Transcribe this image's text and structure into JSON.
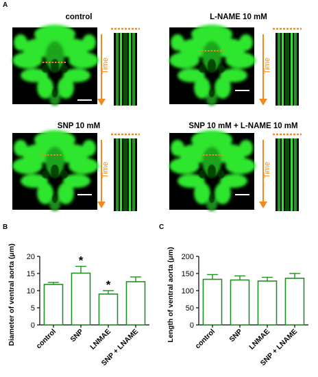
{
  "panel_a": {
    "letter": "A",
    "time_label": "Time",
    "conditions": [
      {
        "title": "control"
      },
      {
        "title": "L-NAME 10 mM"
      },
      {
        "title": "SNP 10 mM"
      },
      {
        "title": "SNP 10 mM + L-NAME 10 mM"
      }
    ]
  },
  "colors": {
    "bar_edge": "#1f8f1f",
    "fluor": "#22e022",
    "orange": "#f08a1e"
  },
  "chart_data": [
    {
      "panel": "B",
      "type": "bar",
      "categories": [
        "control",
        "SNP",
        "LNMAE",
        "SNP + LNAME"
      ],
      "values": [
        11.8,
        15.1,
        9.0,
        12.6
      ],
      "errors": [
        0.6,
        2.0,
        1.0,
        1.4
      ],
      "significance": [
        "",
        "*",
        "*",
        ""
      ],
      "ylabel": "Diameter of ventral aorta (μm)",
      "ylim": [
        0,
        20
      ],
      "yticks": [
        0,
        5,
        10,
        15,
        20
      ]
    },
    {
      "panel": "C",
      "type": "bar",
      "categories": [
        "control",
        "SNP",
        "LNMAE",
        "SNP + LNAME"
      ],
      "values": [
        133,
        131,
        128,
        136
      ],
      "errors": [
        14,
        12,
        11,
        14
      ],
      "significance": [
        "",
        "",
        "",
        ""
      ],
      "ylabel": "Length of ventral aorta (μm)",
      "ylim": [
        0,
        200
      ],
      "yticks": [
        0,
        50,
        100,
        150,
        200
      ]
    }
  ]
}
